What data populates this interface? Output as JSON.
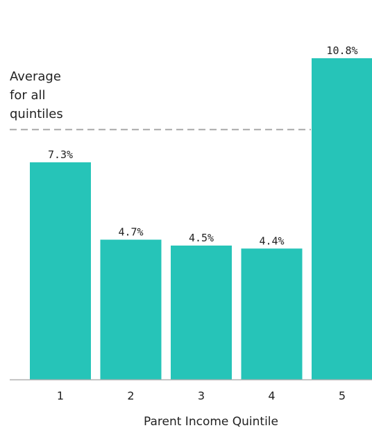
{
  "chart_data": {
    "type": "bar",
    "categories": [
      "1",
      "2",
      "3",
      "4",
      "5"
    ],
    "values": [
      7.3,
      4.7,
      4.5,
      4.4,
      10.8
    ],
    "value_labels": [
      "7.3%",
      "4.7%",
      "4.5%",
      "4.4%",
      "10.8%"
    ],
    "xlabel": "Parent Income Quintile",
    "ylabel": "",
    "ylim": [
      0,
      11.8
    ],
    "reference_line": {
      "value": 8.4,
      "label_lines": [
        "Average",
        "for all",
        "quintiles"
      ]
    },
    "grid": false,
    "colors": {
      "bar": "#26c4b8",
      "reference_line": "#a9a9a9",
      "text": "#222222"
    }
  }
}
